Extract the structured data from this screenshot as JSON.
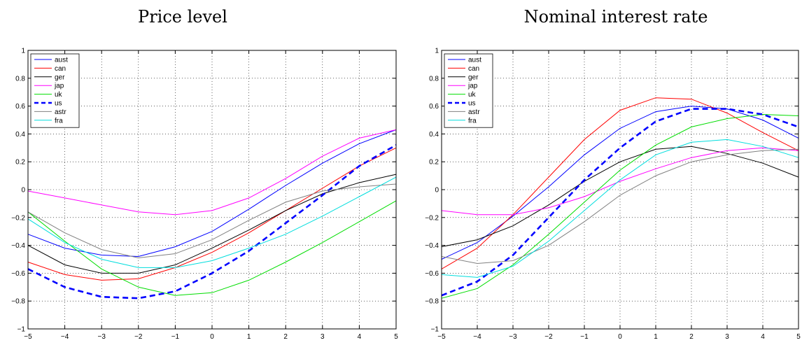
{
  "chart_data": [
    {
      "type": "line",
      "title": "Price level",
      "xlabel": "",
      "ylabel": "",
      "xlim": [
        -5,
        5
      ],
      "ylim": [
        -1,
        1
      ],
      "xticks": [
        -5,
        -4,
        -3,
        -2,
        -1,
        0,
        1,
        2,
        3,
        4,
        5
      ],
      "yticks": [
        -1,
        -0.8,
        -0.6,
        -0.4,
        -0.2,
        0,
        0.2,
        0.4,
        0.6,
        0.8,
        1
      ],
      "grid": true,
      "legend_position": "top-left",
      "x": [
        -5,
        -4,
        -3,
        -2,
        -1,
        0,
        1,
        2,
        3,
        4,
        5
      ],
      "series": [
        {
          "name": "aust",
          "color": "#0000ff",
          "style": "solid",
          "values": [
            -0.32,
            -0.42,
            -0.47,
            -0.48,
            -0.41,
            -0.3,
            -0.14,
            0.03,
            0.19,
            0.33,
            0.43
          ]
        },
        {
          "name": "can",
          "color": "#ff0000",
          "style": "solid",
          "values": [
            -0.52,
            -0.61,
            -0.65,
            -0.64,
            -0.56,
            -0.45,
            -0.31,
            -0.15,
            0.01,
            0.17,
            0.3
          ]
        },
        {
          "name": "ger",
          "color": "#000000",
          "style": "solid",
          "values": [
            -0.4,
            -0.54,
            -0.6,
            -0.6,
            -0.54,
            -0.42,
            -0.29,
            -0.15,
            -0.03,
            0.05,
            0.11
          ]
        },
        {
          "name": "jap",
          "color": "#ff00ff",
          "style": "solid",
          "values": [
            -0.01,
            -0.06,
            -0.11,
            -0.16,
            -0.18,
            -0.15,
            -0.06,
            0.08,
            0.24,
            0.37,
            0.43
          ]
        },
        {
          "name": "uk",
          "color": "#00dd00",
          "style": "solid",
          "values": [
            -0.16,
            -0.37,
            -0.57,
            -0.7,
            -0.76,
            -0.74,
            -0.65,
            -0.52,
            -0.38,
            -0.23,
            -0.08
          ]
        },
        {
          "name": "us",
          "color": "#0000ff",
          "style": "dashed",
          "values": [
            -0.57,
            -0.7,
            -0.77,
            -0.78,
            -0.73,
            -0.6,
            -0.44,
            -0.24,
            -0.04,
            0.17,
            0.32
          ]
        },
        {
          "name": "astr",
          "color": "#808080",
          "style": "solid",
          "values": [
            -0.16,
            -0.31,
            -0.43,
            -0.49,
            -0.46,
            -0.36,
            -0.22,
            -0.09,
            -0.01,
            0.02,
            0.04
          ]
        },
        {
          "name": "fra",
          "color": "#00dddd",
          "style": "solid",
          "values": [
            -0.21,
            -0.38,
            -0.5,
            -0.56,
            -0.56,
            -0.51,
            -0.42,
            -0.32,
            -0.19,
            -0.05,
            0.09
          ]
        }
      ]
    },
    {
      "type": "line",
      "title": "Nominal interest rate",
      "xlabel": "",
      "ylabel": "",
      "xlim": [
        -5,
        5
      ],
      "ylim": [
        -1,
        1
      ],
      "xticks": [
        -5,
        -4,
        -3,
        -2,
        -1,
        0,
        1,
        2,
        3,
        4,
        5
      ],
      "yticks": [
        -1,
        -0.8,
        -0.6,
        -0.4,
        -0.2,
        0,
        0.2,
        0.4,
        0.6,
        0.8,
        1
      ],
      "grid": true,
      "legend_position": "top-left",
      "x": [
        -5,
        -4,
        -3,
        -2,
        -1,
        0,
        1,
        2,
        3,
        4,
        5
      ],
      "series": [
        {
          "name": "aust",
          "color": "#0000ff",
          "style": "solid",
          "values": [
            -0.5,
            -0.38,
            -0.19,
            0.02,
            0.25,
            0.44,
            0.56,
            0.6,
            0.58,
            0.5,
            0.37
          ]
        },
        {
          "name": "can",
          "color": "#ff0000",
          "style": "solid",
          "values": [
            -0.57,
            -0.42,
            -0.18,
            0.09,
            0.36,
            0.57,
            0.66,
            0.65,
            0.55,
            0.41,
            0.28
          ]
        },
        {
          "name": "ger",
          "color": "#000000",
          "style": "solid",
          "values": [
            -0.41,
            -0.36,
            -0.26,
            -0.11,
            0.06,
            0.2,
            0.29,
            0.31,
            0.26,
            0.19,
            0.09
          ]
        },
        {
          "name": "jap",
          "color": "#ff00ff",
          "style": "solid",
          "values": [
            -0.15,
            -0.18,
            -0.18,
            -0.13,
            -0.05,
            0.06,
            0.15,
            0.23,
            0.28,
            0.3,
            0.28
          ]
        },
        {
          "name": "uk",
          "color": "#00dd00",
          "style": "solid",
          "values": [
            -0.78,
            -0.71,
            -0.54,
            -0.32,
            -0.09,
            0.14,
            0.32,
            0.45,
            0.51,
            0.54,
            0.53
          ]
        },
        {
          "name": "us",
          "color": "#0000ff",
          "style": "dashed",
          "values": [
            -0.76,
            -0.66,
            -0.47,
            -0.2,
            0.07,
            0.3,
            0.49,
            0.58,
            0.58,
            0.54,
            0.45
          ]
        },
        {
          "name": "astr",
          "color": "#808080",
          "style": "solid",
          "values": [
            -0.48,
            -0.53,
            -0.51,
            -0.4,
            -0.23,
            -0.04,
            0.1,
            0.2,
            0.25,
            0.28,
            0.29
          ]
        },
        {
          "name": "fra",
          "color": "#00dddd",
          "style": "solid",
          "values": [
            -0.61,
            -0.63,
            -0.55,
            -0.37,
            -0.15,
            0.07,
            0.25,
            0.34,
            0.36,
            0.31,
            0.23
          ]
        }
      ]
    }
  ]
}
